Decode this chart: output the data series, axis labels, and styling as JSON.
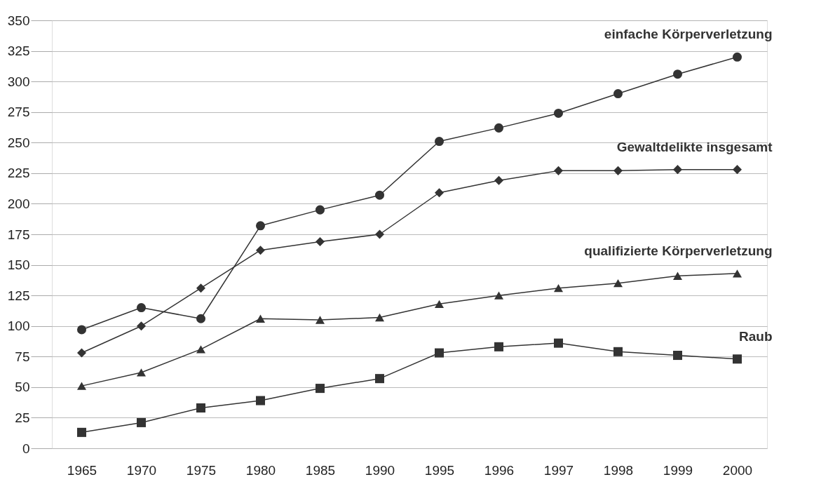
{
  "chart_data": {
    "type": "line",
    "categories": [
      "1965",
      "1970",
      "1975",
      "1980",
      "1985",
      "1990",
      "1995",
      "1996",
      "1997",
      "1998",
      "1999",
      "2000"
    ],
    "series": [
      {
        "name": "einfache Körperverletzung",
        "color": "#333333",
        "marker": "circle",
        "values": [
          97,
          115,
          106,
          182,
          195,
          207,
          251,
          262,
          274,
          290,
          306,
          320
        ]
      },
      {
        "name": "Gewaltdelikte insgesamt",
        "color": "#333333",
        "marker": "diamond",
        "values": [
          78,
          100,
          131,
          162,
          169,
          175,
          209,
          219,
          227,
          227,
          228,
          228
        ]
      },
      {
        "name": "qualifizierte Körperverletzung",
        "color": "#333333",
        "marker": "triangle",
        "values": [
          51,
          62,
          81,
          106,
          105,
          107,
          118,
          125,
          131,
          135,
          141,
          143
        ]
      },
      {
        "name": "Raub",
        "color": "#333333",
        "marker": "square",
        "values": [
          13,
          21,
          33,
          39,
          49,
          57,
          78,
          83,
          86,
          79,
          76,
          73
        ]
      }
    ],
    "ylim": [
      0,
      350
    ],
    "yticks": [
      0,
      25,
      50,
      75,
      100,
      125,
      150,
      175,
      200,
      225,
      250,
      275,
      300,
      325,
      350
    ],
    "grid": "y",
    "line_style": "solid"
  }
}
